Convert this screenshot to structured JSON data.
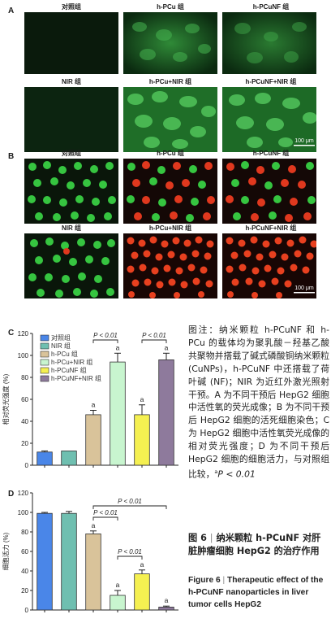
{
  "panels": {
    "a": "A",
    "b": "B",
    "c": "C",
    "d": "D"
  },
  "panel_a": {
    "labels": [
      "对照组",
      "h-PCu 组",
      "h-PCuNF 组",
      "NIR 组",
      "h-PCu+NIR 组",
      "h-PCuNF+NIR 组"
    ],
    "scale_bar": "100 μm"
  },
  "panel_b": {
    "labels": [
      "对照组",
      "h-PCu 组",
      "h-PCuNF 组",
      "NIR 组",
      "h-PCu+NIR 组",
      "h-PCuNF+NIR 组"
    ],
    "scale_bar": "100 μm"
  },
  "chart_data": [
    {
      "panel": "C",
      "type": "bar",
      "ylabel": "相对荧光强度 (%)",
      "ylim": [
        0,
        120
      ],
      "yticks": [
        "0",
        "20",
        "40",
        "60",
        "80",
        "100",
        "120"
      ],
      "legend": [
        "对照组",
        "NIR 组",
        "h-PCu 组",
        "h-PCu+NIR 组",
        "h-PCuNF 组",
        "h-PCuNF+NIR 组"
      ],
      "categories": [
        "对照组",
        "NIR 组",
        "h-PCu 组",
        "h-PCu+NIR 组",
        "h-PCuNF 组",
        "h-PCuNF+NIR 组"
      ],
      "values": [
        12,
        13,
        46,
        94,
        46,
        96
      ],
      "errors": [
        1,
        0,
        4,
        8,
        9,
        6
      ],
      "colors": [
        "#4a86e8",
        "#6fbfb0",
        "#d9c39a",
        "#c8f5cf",
        "#f5f051",
        "#8e7a9c"
      ],
      "significance": [
        "",
        "",
        "a",
        "a",
        "a",
        "a"
      ],
      "comparisons": [
        "P < 0.01",
        "P < 0.01"
      ]
    },
    {
      "panel": "D",
      "type": "bar",
      "ylabel": "细胞活力 (%)",
      "ylim": [
        0,
        120
      ],
      "yticks": [
        "0",
        "20",
        "40",
        "60",
        "80",
        "100",
        "120"
      ],
      "categories": [
        "对照组",
        "NIR 组",
        "h-PCu 组",
        "h-PCu+NIR 组",
        "h-PCuNF 组",
        "h-PCuNF+NIR 组"
      ],
      "values": [
        99,
        99,
        78,
        15,
        37,
        3
      ],
      "errors": [
        1,
        2,
        3,
        5,
        4,
        1
      ],
      "colors": [
        "#4a86e8",
        "#6fbfb0",
        "#d9c39a",
        "#c8f5cf",
        "#f5f051",
        "#8e7a9c"
      ],
      "significance": [
        "",
        "",
        "a",
        "a",
        "a",
        "a"
      ],
      "comparisons": [
        "P < 0.01",
        "P < 0.01",
        "P < 0.01"
      ]
    }
  ],
  "caption": {
    "body": "图注：纳米颗粒 h-PCuNF 和 h-PCu 的载体均为聚乳酸－羟基乙酸共聚物并搭载了碱式磷酸铜纳米颗粒 (CuNPs)，h-PCuNF 中还搭载了荷叶碱 (NF)；NIR 为近红外激光照射干预。A 为不同干预后 HepG2 细胞中活性氧的荧光成像；B 为不同干预后 HepG2 细胞的活死细胞染色；C 为 HepG2 细胞中活性氧荧光成像的相对荧光强度；D 为不同干预后 HepG2 细胞的细胞活力，与对照组比较，",
    "note_sup": "a",
    "note": "P < 0.01",
    "fig_cn_num": "图 6",
    "fig_cn_sep": "|",
    "fig_cn_title": "纳米颗粒 h-PCuNF 对肝脏肿瘤细胞 HepG2 的治疗作用",
    "fig_en_num": "Figure 6",
    "fig_en_sep": "|",
    "fig_en_title": "Therapeutic effect of the h-PCuNF nanoparticles in liver tumor cells HepG2"
  }
}
